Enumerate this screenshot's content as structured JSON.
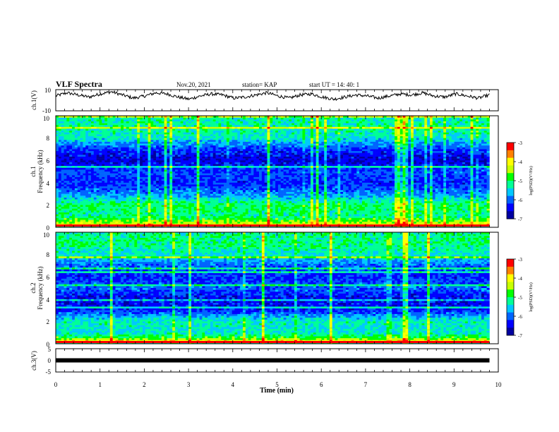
{
  "header": {
    "title": "VLF Spectra",
    "date": "Nov.20, 2021",
    "station": "station= KAP",
    "start": "start  UT =   14: 40: 1"
  },
  "colors": {
    "colormap": [
      "#0000a0",
      "#0000ff",
      "#0064ff",
      "#00c8ff",
      "#00ff96",
      "#00ff00",
      "#c8ff00",
      "#ffff00",
      "#ff8000",
      "#ff0000",
      "#ffffff"
    ],
    "trace": "#000000"
  },
  "chart_data": [
    {
      "type": "line",
      "name": "ch1-waveform",
      "ylabel": "ch.1(V)",
      "ylim": [
        -10,
        10
      ],
      "yticks": [
        "10",
        "-10"
      ],
      "x_range_min": [
        0,
        9.8
      ],
      "y_trend": [
        4,
        7,
        5,
        3,
        6,
        8,
        5,
        2,
        4,
        7,
        6,
        3,
        1,
        4,
        6,
        5,
        2,
        3,
        5,
        7,
        4,
        2,
        5,
        6,
        3,
        1,
        3,
        5,
        4,
        2,
        4,
        6,
        5,
        7,
        4,
        3,
        6,
        4,
        2,
        5
      ]
    },
    {
      "type": "heatmap",
      "name": "ch1-spectrogram",
      "ylabel": "ch.1\nFrequency (kHz)",
      "ylim_khz": [
        0,
        10
      ],
      "yticks": [
        "0",
        "2",
        "4",
        "6",
        "8",
        "10"
      ],
      "x_range_min": [
        0,
        9.8
      ],
      "colorbar": {
        "label": "log(PSD)(V²/Hz)",
        "range": [
          -7,
          -3
        ],
        "ticks": [
          "-3",
          "-4",
          "-5",
          "-6",
          "-7"
        ]
      },
      "band_profile_khz": [
        {
          "f": 0.1,
          "level": -3.8
        },
        {
          "f": 0.5,
          "level": -4.6
        },
        {
          "f": 1.0,
          "level": -5.2
        },
        {
          "f": 2.0,
          "level": -5.0
        },
        {
          "f": 3.0,
          "level": -5.9
        },
        {
          "f": 4.0,
          "level": -6.3
        },
        {
          "f": 5.0,
          "level": -6.1
        },
        {
          "f": 6.0,
          "level": -6.6
        },
        {
          "f": 7.0,
          "level": -6.2
        },
        {
          "f": 8.0,
          "level": -5.4
        },
        {
          "f": 9.0,
          "level": -5.2
        },
        {
          "f": 10.0,
          "level": -5.3
        }
      ]
    },
    {
      "type": "heatmap",
      "name": "ch2-spectrogram",
      "ylabel": "ch.2\nFrequency (kHz)",
      "ylim_khz": [
        0,
        10
      ],
      "yticks": [
        "0",
        "2",
        "4",
        "6",
        "8",
        "10"
      ],
      "x_range_min": [
        0,
        9.8
      ],
      "colorbar": {
        "label": "log(PSD)(V²/Hz)",
        "range": [
          -7,
          -3
        ],
        "ticks": [
          "-3",
          "-4",
          "-5",
          "-6",
          "-7"
        ]
      },
      "band_profile_khz": [
        {
          "f": 0.1,
          "level": -3.6
        },
        {
          "f": 0.5,
          "level": -4.8
        },
        {
          "f": 1.0,
          "level": -5.4
        },
        {
          "f": 2.0,
          "level": -5.3
        },
        {
          "f": 3.0,
          "level": -6.3
        },
        {
          "f": 4.0,
          "level": -6.5
        },
        {
          "f": 5.0,
          "level": -6.0
        },
        {
          "f": 6.0,
          "level": -6.3
        },
        {
          "f": 7.0,
          "level": -6.0
        },
        {
          "f": 8.0,
          "level": -5.4
        },
        {
          "f": 9.0,
          "level": -5.1
        },
        {
          "f": 10.0,
          "level": -5.2
        }
      ]
    },
    {
      "type": "line",
      "name": "ch3-waveform",
      "ylabel": "ch.3(V)",
      "ylim": [
        -5,
        5
      ],
      "yticks": [
        "5",
        "0",
        "-5"
      ],
      "x_range_min": [
        0,
        9.8
      ],
      "value_v": 0
    }
  ],
  "x_axis": {
    "label": "Time (min)",
    "range": [
      0,
      10
    ],
    "ticks": [
      "0",
      "1",
      "2",
      "3",
      "4",
      "5",
      "6",
      "7",
      "8",
      "9",
      "10"
    ]
  }
}
